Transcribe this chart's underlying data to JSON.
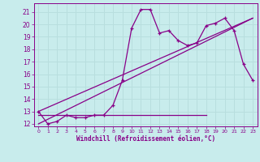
{
  "title": "",
  "xlabel": "Windchill (Refroidissement éolien,°C)",
  "ylabel": "",
  "background_color": "#c8ecec",
  "grid_color": "#b8dede",
  "line_color": "#880088",
  "xlim": [
    -0.5,
    23.5
  ],
  "ylim": [
    11.8,
    21.7
  ],
  "yticks": [
    12,
    13,
    14,
    15,
    16,
    17,
    18,
    19,
    20,
    21
  ],
  "xticks": [
    0,
    1,
    2,
    3,
    4,
    5,
    6,
    7,
    8,
    9,
    10,
    11,
    12,
    13,
    14,
    15,
    16,
    17,
    18,
    19,
    20,
    21,
    22,
    23
  ],
  "series1_x": [
    0,
    1,
    2,
    3,
    4,
    5,
    6,
    7,
    8,
    9,
    10,
    11,
    12,
    13,
    14,
    15,
    16,
    17,
    18,
    19,
    20,
    21,
    22,
    23
  ],
  "series1_y": [
    13.0,
    12.0,
    12.2,
    12.7,
    12.5,
    12.5,
    12.7,
    12.7,
    13.5,
    15.5,
    19.7,
    21.2,
    21.2,
    19.3,
    19.5,
    18.7,
    18.3,
    18.5,
    19.9,
    20.1,
    20.5,
    19.5,
    16.8,
    15.5
  ],
  "flat_line_y": 12.7,
  "flat_line_x_start": 0,
  "flat_line_x_end": 18,
  "trend_line": {
    "x": [
      0,
      23
    ],
    "y": [
      13.0,
      20.5
    ]
  },
  "trend_line2": {
    "x": [
      0,
      23
    ],
    "y": [
      12.0,
      20.5
    ]
  }
}
